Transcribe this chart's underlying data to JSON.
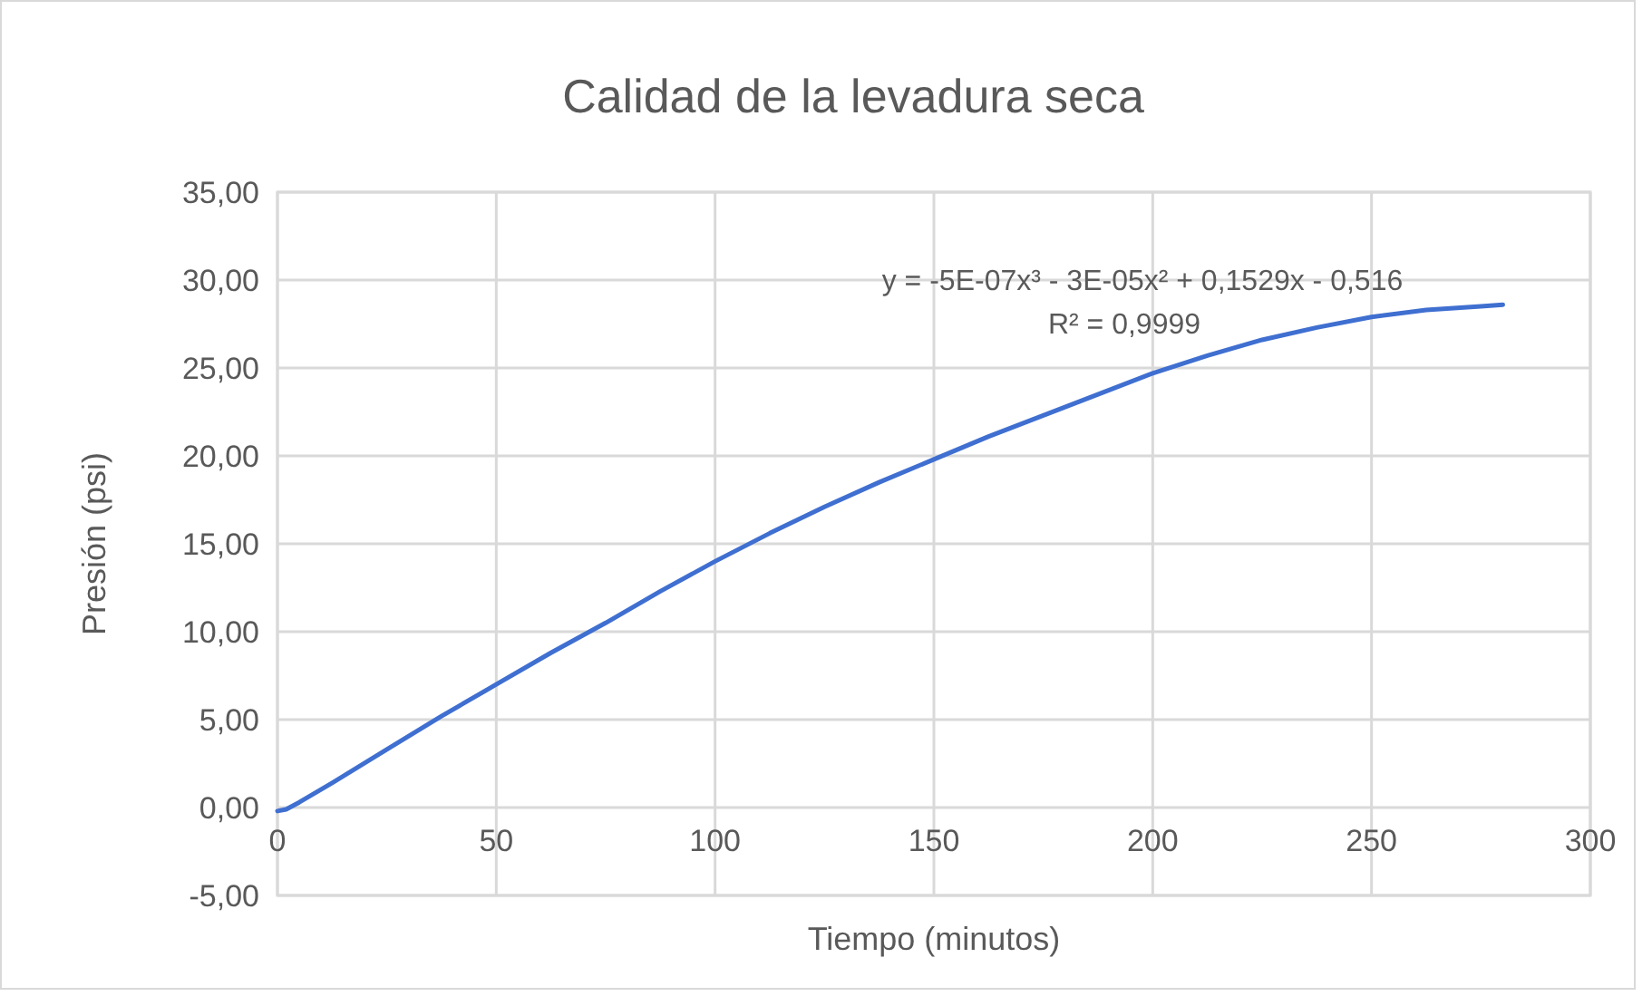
{
  "chart_data": {
    "type": "line",
    "title": "Calidad de la levadura seca",
    "xlabel": "Tiempo (minutos)",
    "ylabel": "Presión (psi)",
    "annotations": [
      "y = -5E-07x³ - 3E-05x² + 0,1529x - 0,516",
      "R² = 0,9999"
    ],
    "series": [
      {
        "color": "#3f6fd0",
        "x": [
          0,
          2,
          5,
          12.5,
          25,
          37.5,
          50,
          62.5,
          75,
          87.5,
          100,
          112.5,
          125,
          137.5,
          150,
          162.5,
          175,
          187.5,
          200,
          212.5,
          225,
          237.5,
          250,
          262.5,
          275,
          280
        ],
        "values": [
          -0.2,
          -0.1,
          0.3,
          1.4,
          3.3,
          5.2,
          7.0,
          8.8,
          10.5,
          12.3,
          14.0,
          15.6,
          17.1,
          18.5,
          19.8,
          21.1,
          22.3,
          23.5,
          24.7,
          25.7,
          26.6,
          27.3,
          27.9,
          28.3,
          28.5,
          28.6
        ]
      }
    ],
    "xlim": [
      0,
      300
    ],
    "xticks": [
      0,
      50,
      100,
      150,
      200,
      250,
      300
    ],
    "ylim": [
      -5,
      35
    ],
    "yticks": [
      {
        "value": -5,
        "label": "-5,00"
      },
      {
        "value": 0,
        "label": "0,00"
      },
      {
        "value": 5,
        "label": "5,00"
      },
      {
        "value": 10,
        "label": "10,00"
      },
      {
        "value": 15,
        "label": "15,00"
      },
      {
        "value": 20,
        "label": "20,00"
      },
      {
        "value": 25,
        "label": "25,00"
      },
      {
        "value": 30,
        "label": "30,00"
      },
      {
        "value": 35,
        "label": "35,00"
      }
    ],
    "grid": true,
    "marker": "none",
    "line_style": "solid"
  }
}
